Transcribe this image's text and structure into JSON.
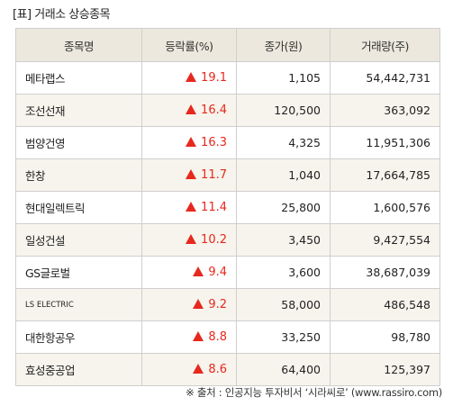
{
  "title": "[표] 거래소 상승종목",
  "table": {
    "headers": {
      "name": "종목명",
      "rate": "등락률(%)",
      "price": "종가(원)",
      "volume": "거래량(주)"
    },
    "rows": [
      {
        "name": "메타랩스",
        "rate": "19.1",
        "price": "1,105",
        "volume": "54,442,731"
      },
      {
        "name": "조선선재",
        "rate": "16.4",
        "price": "120,500",
        "volume": "363,092"
      },
      {
        "name": "범양건영",
        "rate": "16.3",
        "price": "4,325",
        "volume": "11,951,306"
      },
      {
        "name": "한창",
        "rate": "11.7",
        "price": "1,040",
        "volume": "17,664,785"
      },
      {
        "name": "현대일렉트릭",
        "rate": "11.4",
        "price": "25,800",
        "volume": "1,600,576"
      },
      {
        "name": "일성건설",
        "rate": "10.2",
        "price": "3,450",
        "volume": "9,427,554"
      },
      {
        "name": "GS글로벌",
        "rate": "9.4",
        "price": "3,600",
        "volume": "38,687,039"
      },
      {
        "name": "LS ELECTRIC",
        "rate": "9.2",
        "price": "58,000",
        "volume": "486,548"
      },
      {
        "name": "대한항공우",
        "rate": "8.8",
        "price": "33,250",
        "volume": "98,780"
      },
      {
        "name": "효성중공업",
        "rate": "8.6",
        "price": "64,400",
        "volume": "125,397"
      }
    ]
  },
  "source": "※ 출처 : 인공지능 투자비서 ‘시라씨로’ (www.rassiro.com)",
  "colors": {
    "up": "#e6281e",
    "header_bg": "#ece8dd",
    "stripe_bg": "#f6f4ec",
    "border": "#cfcfcf"
  },
  "icons": {
    "up_marker": "triangle-up-icon"
  }
}
